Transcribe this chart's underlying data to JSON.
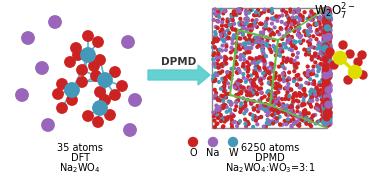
{
  "bg_color": "#ffffff",
  "w2o7_label": "W$_2$O$_7$$^{2-}$",
  "arrow_text": "DPMD",
  "left_label1": "35 atoms",
  "left_label2": "DFT",
  "left_label3": "Na$_2$WO$_4$",
  "right_label1": "6250 atoms",
  "right_label2": "DPMD",
  "right_label3": "Na$_2$WO$_4$:WO$_3$=3:1",
  "legend_labels": [
    "O",
    "Na",
    "W"
  ],
  "legend_colors": [
    "#cc2222",
    "#9966bb",
    "#4499bb"
  ],
  "o_color": "#cc2222",
  "na_color": "#9966bb",
  "w_color": "#4499bb",
  "w_bond_color": "#5aafcc",
  "w2o7_color": "#dddd00",
  "green_color": "#66bb44",
  "arrow_color": "#55cccc",
  "sim_box_bg": "#ffffff",
  "right_panel_bg": "#66aacc"
}
